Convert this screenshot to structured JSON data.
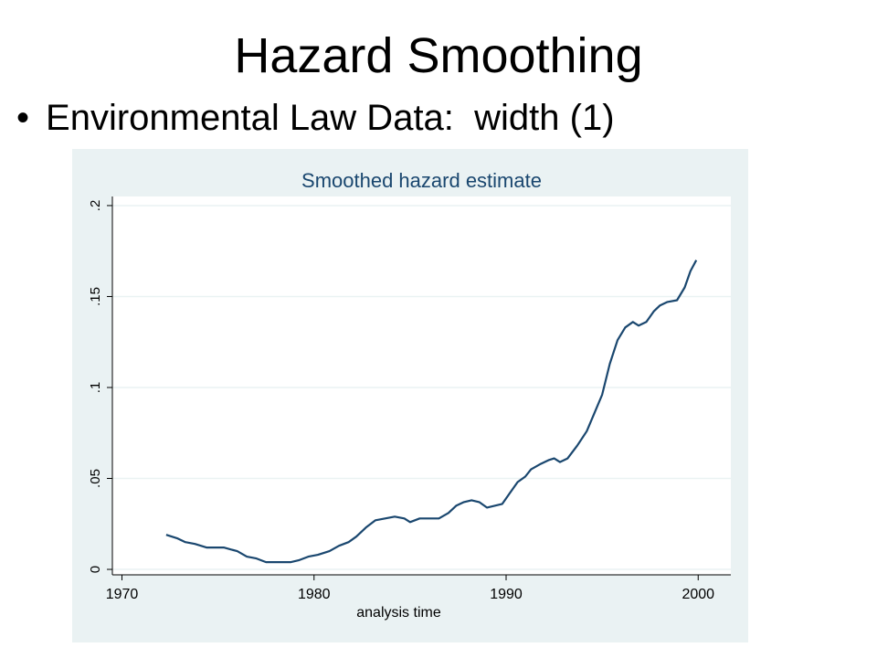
{
  "slide": {
    "title": "Hazard Smoothing",
    "bullet_symbol": "•",
    "bullet_text": "Environmental Law Data:  width (1)"
  },
  "colors": {
    "panel_bg": "#eaf2f3",
    "plot_bg": "#ffffff",
    "line": "#1a476f",
    "title_color": "#1a476f",
    "grid": "#eaf2f3"
  },
  "chart_data": {
    "type": "line",
    "title": "Smoothed hazard estimate",
    "xlabel": "analysis time",
    "ylabel": "",
    "xlim": [
      1969.5,
      2001.7
    ],
    "ylim": [
      -0.003,
      0.205
    ],
    "xticks": [
      1970,
      1980,
      1990,
      2000
    ],
    "xtick_labels": [
      "1970",
      "1980",
      "1990",
      "2000"
    ],
    "yticks": [
      0,
      0.05,
      0.1,
      0.15,
      0.2
    ],
    "ytick_labels": [
      "0",
      ".05",
      ".1",
      ".15",
      ".2"
    ],
    "grid": true,
    "series": [
      {
        "x": [
          1972.3,
          1972.9,
          1973.3,
          1973.8,
          1974.4,
          1975.3,
          1976.0,
          1976.5,
          1977.0,
          1977.5,
          1978.3,
          1978.8,
          1979.2,
          1979.7,
          1980.2,
          1980.8,
          1981.3,
          1981.8,
          1982.2,
          1982.7,
          1983.2,
          1983.7,
          1984.2,
          1984.7,
          1985.0,
          1985.5,
          1986.0,
          1986.5,
          1987.0,
          1987.4,
          1987.8,
          1988.2,
          1988.6,
          1989.0,
          1989.4,
          1989.8,
          1990.2,
          1990.6,
          1991.0,
          1991.3,
          1991.8,
          1992.2,
          1992.5,
          1992.8,
          1993.2,
          1993.7,
          1994.2,
          1994.6,
          1995.0,
          1995.4,
          1995.8,
          1996.2,
          1996.6,
          1996.9,
          1997.3,
          1997.7,
          1998.0,
          1998.4,
          1998.9,
          1999.3,
          1999.6,
          1999.9
        ],
        "y": [
          0.019,
          0.017,
          0.015,
          0.014,
          0.012,
          0.012,
          0.01,
          0.007,
          0.006,
          0.004,
          0.004,
          0.004,
          0.005,
          0.007,
          0.008,
          0.01,
          0.013,
          0.015,
          0.018,
          0.023,
          0.027,
          0.028,
          0.029,
          0.028,
          0.026,
          0.028,
          0.028,
          0.028,
          0.031,
          0.035,
          0.037,
          0.038,
          0.037,
          0.034,
          0.035,
          0.036,
          0.042,
          0.048,
          0.051,
          0.055,
          0.058,
          0.06,
          0.061,
          0.059,
          0.061,
          0.068,
          0.076,
          0.086,
          0.096,
          0.113,
          0.126,
          0.133,
          0.136,
          0.134,
          0.136,
          0.142,
          0.145,
          0.147,
          0.148,
          0.155,
          0.164,
          0.17
        ]
      }
    ]
  }
}
